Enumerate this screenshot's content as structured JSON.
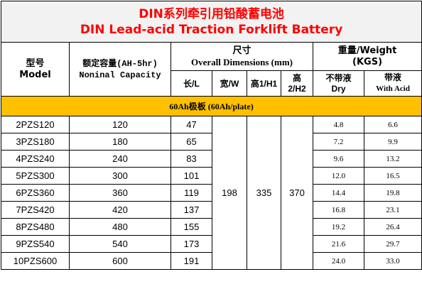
{
  "title": {
    "cn": "DIN系列牵引用铅酸蓄电池",
    "en": "DIN Lead-acid Traction Forklift Battery"
  },
  "headers": {
    "model_cn": "型号",
    "model_en": "Model",
    "capacity_cn": "额定容量(AH-5hr)",
    "capacity_en": "Noninal Capacity",
    "dimensions_cn": "尺寸",
    "dimensions_en": "Overall Dimensions (mm)",
    "length": "长/L",
    "width": "宽/W",
    "height1": "高1/H1",
    "height2_line1": "高",
    "height2_line2": "2/H2",
    "weight_title_line1": "重量/Weight",
    "weight_title_line2": "(KGS)",
    "dry_cn": "不带液",
    "dry_en": "Dry",
    "acid_cn": "带液",
    "acid_en": "With Acid"
  },
  "section_label": "60Ah极板 (60Ah/plate)",
  "shared": {
    "width": "198",
    "height1": "335",
    "height2": "370"
  },
  "rows": [
    {
      "model": "2PZS120",
      "capacity": "120",
      "length": "47",
      "dry": "4.8",
      "acid": "6.6"
    },
    {
      "model": "3PZS180",
      "capacity": "180",
      "length": "65",
      "dry": "7.2",
      "acid": "9.9"
    },
    {
      "model": "4PZS240",
      "capacity": "240",
      "length": "83",
      "dry": "9.6",
      "acid": "13.2"
    },
    {
      "model": "5PZS300",
      "capacity": "300",
      "length": "101",
      "dry": "12.0",
      "acid": "16.5"
    },
    {
      "model": "6PZS360",
      "capacity": "360",
      "length": "119",
      "dry": "14.4",
      "acid": "19.8"
    },
    {
      "model": "7PZS420",
      "capacity": "420",
      "length": "137",
      "dry": "16.8",
      "acid": "23.1"
    },
    {
      "model": "8PZS480",
      "capacity": "480",
      "length": "155",
      "dry": "19.2",
      "acid": "26.4"
    },
    {
      "model": "9PZS540",
      "capacity": "540",
      "length": "173",
      "dry": "21.6",
      "acid": "29.7"
    },
    {
      "model": "10PZS600",
      "capacity": "600",
      "length": "191",
      "dry": "24.0",
      "acid": "33.0"
    }
  ]
}
